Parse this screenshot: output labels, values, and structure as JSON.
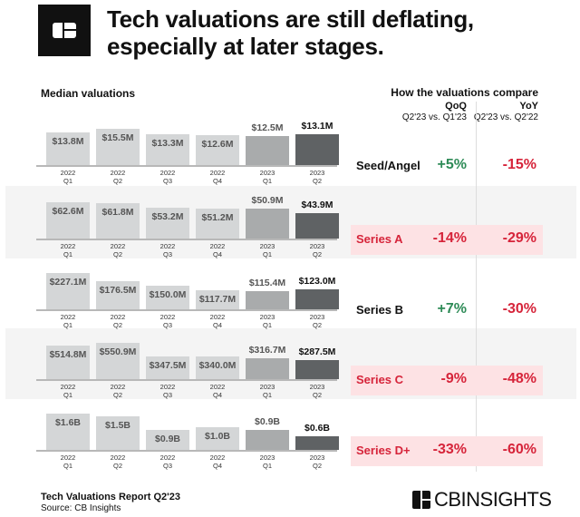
{
  "header": {
    "title_line1": "Tech valuations are still deflating,",
    "title_line2": "especially at later stages."
  },
  "left_heading": "Median valuations",
  "right_heading": "How the valuations compare",
  "columns": {
    "qoq": "QoQ",
    "qoq_sub": "Q2'23 vs. Q1'23",
    "yoy": "YoY",
    "yoy_sub": "Q2'23 vs. Q2'22"
  },
  "colors": {
    "bar_2022": "#d4d6d7",
    "bar_2023q1": "#a9abac",
    "bar_2023q2": "#5f6264",
    "positive": "#2e8b57",
    "negative": "#d6243a",
    "highlight": "#fde2e4",
    "band": "#f4f4f4"
  },
  "chart_data": {
    "type": "bar",
    "categories": [
      [
        "2022",
        "Q1"
      ],
      [
        "2022",
        "Q2"
      ],
      [
        "2022",
        "Q3"
      ],
      [
        "2022",
        "Q4"
      ],
      [
        "2023",
        "Q1"
      ],
      [
        "2023",
        "Q2"
      ]
    ],
    "stages": [
      {
        "name": "Seed/Angel",
        "unit": "M",
        "values": [
          13.8,
          15.5,
          13.3,
          12.6,
          12.5,
          13.1
        ],
        "labels": [
          "$13.8M",
          "$15.5M",
          "$13.3M",
          "$12.6M",
          "$12.5M",
          "$13.1M"
        ],
        "qoq": "+5%",
        "yoy": "-15%",
        "highlighted": false
      },
      {
        "name": "Series A",
        "unit": "M",
        "values": [
          62.6,
          61.8,
          53.2,
          51.2,
          50.9,
          43.9
        ],
        "labels": [
          "$62.6M",
          "$61.8M",
          "$53.2M",
          "$51.2M",
          "$50.9M",
          "$43.9M"
        ],
        "qoq": "-14%",
        "yoy": "-29%",
        "highlighted": true
      },
      {
        "name": "Series B",
        "unit": "M",
        "values": [
          227.1,
          176.5,
          150.0,
          117.7,
          115.4,
          123.0
        ],
        "labels": [
          "$227.1M",
          "$176.5M",
          "$150.0M",
          "$117.7M",
          "$115.4M",
          "$123.0M"
        ],
        "qoq": "+7%",
        "yoy": "-30%",
        "highlighted": false
      },
      {
        "name": "Series C",
        "unit": "M",
        "values": [
          514.8,
          550.9,
          347.5,
          340.0,
          316.7,
          287.5
        ],
        "labels": [
          "$514.8M",
          "$550.9M",
          "$347.5M",
          "$340.0M",
          "$316.7M",
          "$287.5M"
        ],
        "qoq": "-9%",
        "yoy": "-48%",
        "highlighted": true
      },
      {
        "name": "Series D+",
        "unit": "B",
        "values": [
          1.6,
          1.5,
          0.9,
          1.0,
          0.9,
          0.6
        ],
        "labels": [
          "$1.6B",
          "$1.5B",
          "$0.9B",
          "$1.0B",
          "$0.9B",
          "$0.6B"
        ],
        "qoq": "-33%",
        "yoy": "-60%",
        "highlighted": true
      }
    ]
  },
  "footer": {
    "report": "Tech Valuations Report Q2'23",
    "source": "Source: CB Insights",
    "brand": "CBINSIGHTS"
  }
}
